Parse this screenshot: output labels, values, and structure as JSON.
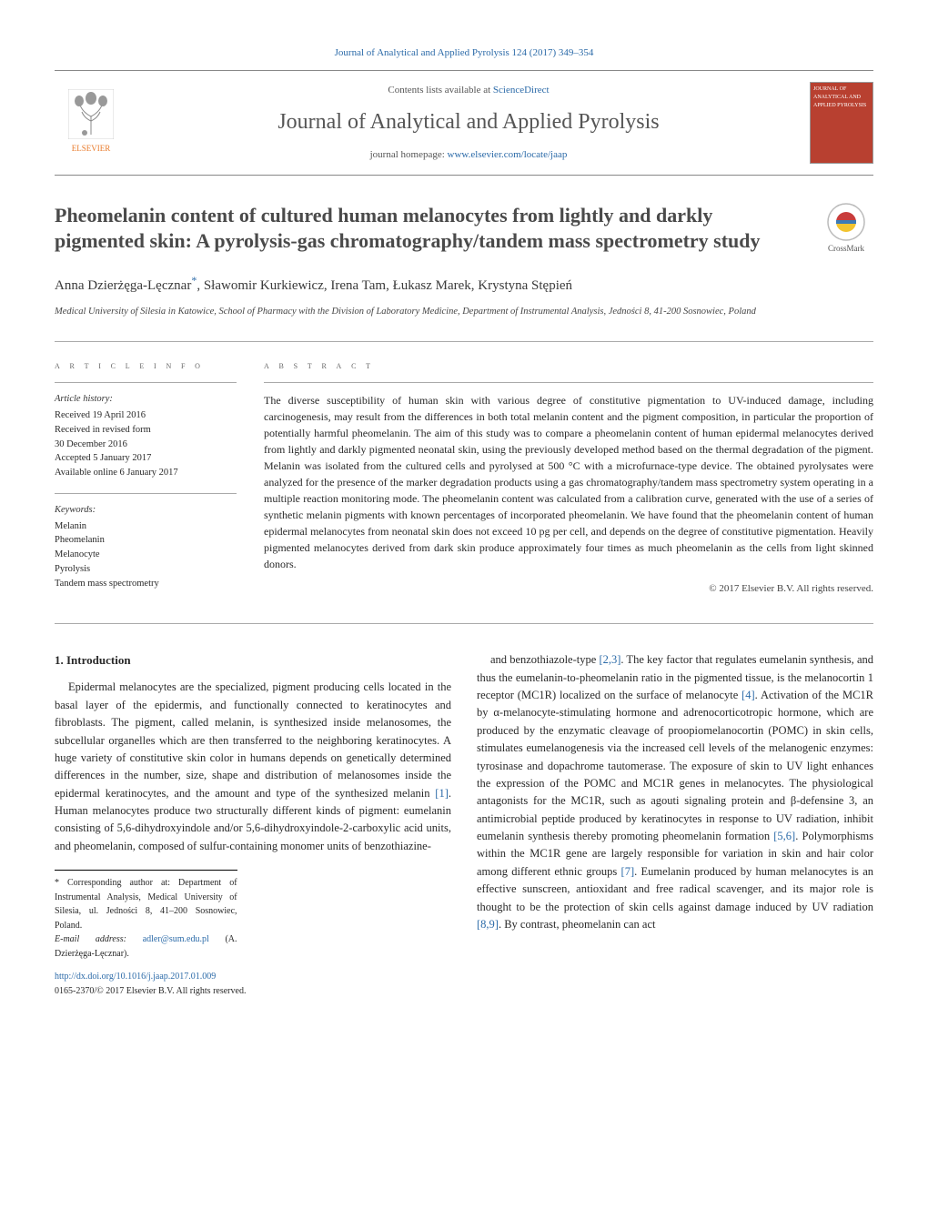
{
  "colors": {
    "link": "#2b6aa8",
    "accent_orange": "#e97b2b",
    "cover_bg": "#b84030",
    "text": "#282828",
    "muted": "#555555",
    "rule": "#aaaaaa"
  },
  "top_link": "Journal of Analytical and Applied Pyrolysis 124 (2017) 349–354",
  "header": {
    "publisher_name": "ELSEVIER",
    "contents_prefix": "Contents lists available at ",
    "contents_link_text": "ScienceDirect",
    "journal_title": "Journal of Analytical and Applied Pyrolysis",
    "homepage_prefix": "journal homepage: ",
    "homepage_url": "www.elsevier.com/locate/jaap",
    "cover_text": "JOURNAL OF ANALYTICAL AND APPLIED PYROLYSIS"
  },
  "paper": {
    "title": "Pheomelanin content of cultured human melanocytes from lightly and darkly pigmented skin: A pyrolysis-gas chromatography/tandem mass spectrometry study",
    "crossmark_label": "CrossMark",
    "authors_html": "Anna Dzierżęga-Lęcznar*, Sławomir Kurkiewicz, Irena Tam, Łukasz Marek, Krystyna Stępień",
    "affiliation": "Medical University of Silesia in Katowice, School of Pharmacy with the Division of Laboratory Medicine, Department of Instrumental Analysis, Jedności 8, 41-200 Sosnowiec, Poland"
  },
  "article_info": {
    "heading": "a r t i c l e   i n f o",
    "history_label": "Article history:",
    "history": [
      "Received 19 April 2016",
      "Received in revised form",
      "30 December 2016",
      "Accepted 5 January 2017",
      "Available online 6 January 2017"
    ],
    "keywords_label": "Keywords:",
    "keywords": [
      "Melanin",
      "Pheomelanin",
      "Melanocyte",
      "Pyrolysis",
      "Tandem mass spectrometry"
    ]
  },
  "abstract": {
    "heading": "a b s t r a c t",
    "text": "The diverse susceptibility of human skin with various degree of constitutive pigmentation to UV-induced damage, including carcinogenesis, may result from the differences in both total melanin content and the pigment composition, in particular the proportion of potentially harmful pheomelanin. The aim of this study was to compare a pheomelanin content of human epidermal melanocytes derived from lightly and darkly pigmented neonatal skin, using the previously developed method based on the thermal degradation of the pigment. Melanin was isolated from the cultured cells and pyrolysed at 500 °C with a microfurnace-type device. The obtained pyrolysates were analyzed for the presence of the marker degradation products using a gas chromatography/tandem mass spectrometry system operating in a multiple reaction monitoring mode. The pheomelanin content was calculated from a calibration curve, generated with the use of a series of synthetic melanin pigments with known percentages of incorporated pheomelanin. We have found that the pheomelanin content of human epidermal melanocytes from neonatal skin does not exceed 10 pg per cell, and depends on the degree of constitutive pigmentation. Heavily pigmented melanocytes derived from dark skin produce approximately four times as much pheomelanin as the cells from light skinned donors.",
    "copyright": "© 2017 Elsevier B.V. All rights reserved."
  },
  "body": {
    "section_heading": "1. Introduction",
    "left_col": "Epidermal melanocytes are the specialized, pigment producing cells located in the basal layer of the epidermis, and functionally connected to keratinocytes and fibroblasts. The pigment, called melanin, is synthesized inside melanosomes, the subcellular organelles which are then transferred to the neighboring keratinocytes. A huge variety of constitutive skin color in humans depends on genetically determined differences in the number, size, shape and distribution of melanosomes inside the epidermal keratinocytes, and the amount and type of the synthesized melanin [1]. Human melanocytes produce two structurally different kinds of pigment: eumelanin consisting of 5,6-dihydroxyindole and/or 5,6-dihydroxyindole-2-carboxylic acid units, and pheomelanin, composed of sulfur-containing monomer units of benzothiazine-",
    "right_col": "and benzothiazole-type [2,3]. The key factor that regulates eumelanin synthesis, and thus the eumelanin-to-pheomelanin ratio in the pigmented tissue, is the melanocortin 1 receptor (MC1R) localized on the surface of melanocyte [4]. Activation of the MC1R by α-melanocyte-stimulating hormone and adrenocorticotropic hormone, which are produced by the enzymatic cleavage of proopiomelanocortin (POMC) in skin cells, stimulates eumelanogenesis via the increased cell levels of the melanogenic enzymes: tyrosinase and dopachrome tautomerase. The exposure of skin to UV light enhances the expression of the POMC and MC1R genes in melanocytes. The physiological antagonists for the MC1R, such as agouti signaling protein and β-defensine 3, an antimicrobial peptide produced by keratinocytes in response to UV radiation, inhibit eumelanin synthesis thereby promoting pheomelanin formation [5,6]. Polymorphisms within the MC1R gene are largely responsible for variation in skin and hair color among different ethnic groups [7]. Eumelanin produced by human melanocytes is an effective sunscreen, antioxidant and free radical scavenger, and its major role is thought to be the protection of skin cells against damage induced by UV radiation [8,9]. By contrast, pheomelanin can act",
    "ref_markers_left": [
      "[1]"
    ],
    "ref_markers_right": [
      "[2,3]",
      "[4]",
      "[5,6]",
      "[7]",
      "[8,9]"
    ]
  },
  "footnote": {
    "corr_label": "* Corresponding author at: Department of Instrumental Analysis, Medical University of Silesia, ul. Jedności 8, 41–200 Sosnowiec, Poland.",
    "email_label": "E-mail address: ",
    "email": "adler@sum.edu.pl",
    "email_person": " (A. Dzierżęga-Lęcznar)."
  },
  "doi": {
    "url": "http://dx.doi.org/10.1016/j.jaap.2017.01.009",
    "issn_line": "0165-2370/© 2017 Elsevier B.V. All rights reserved."
  }
}
